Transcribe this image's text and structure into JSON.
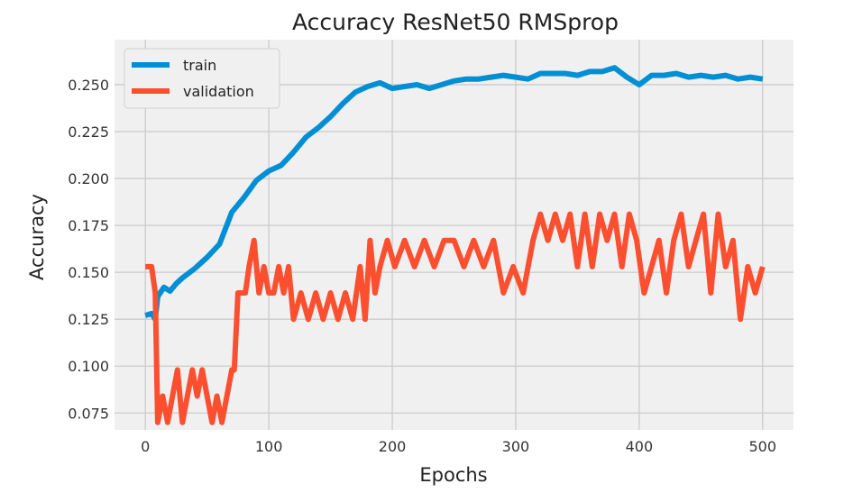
{
  "chart_data": {
    "type": "line",
    "title": "Accuracy ResNet50 RMSprop",
    "xlabel": "Epochs",
    "ylabel": "Accuracy",
    "xlim": [
      -25,
      525
    ],
    "ylim": [
      0.066,
      0.274
    ],
    "xticks": [
      0,
      100,
      200,
      300,
      400,
      500
    ],
    "yticks": [
      0.075,
      0.1,
      0.125,
      0.15,
      0.175,
      0.2,
      0.225,
      0.25
    ],
    "grid": true,
    "legend_position": "top-left",
    "colors": {
      "plot_bg": "#f0f0f0",
      "grid": "#cbcbcb",
      "train": "#008fd5",
      "validation": "#fc4f30"
    },
    "series": [
      {
        "name": "train",
        "color": "#008fd5",
        "x": [
          0,
          5,
          8,
          10,
          15,
          20,
          25,
          30,
          40,
          50,
          60,
          70,
          80,
          90,
          100,
          110,
          120,
          130,
          140,
          150,
          160,
          170,
          180,
          190,
          200,
          210,
          220,
          230,
          240,
          250,
          260,
          270,
          280,
          290,
          300,
          310,
          320,
          330,
          340,
          350,
          360,
          370,
          380,
          390,
          400,
          410,
          420,
          430,
          440,
          450,
          460,
          470,
          480,
          490,
          500
        ],
        "y": [
          0.127,
          0.128,
          0.125,
          0.137,
          0.142,
          0.14,
          0.144,
          0.147,
          0.152,
          0.158,
          0.165,
          0.182,
          0.19,
          0.199,
          0.204,
          0.207,
          0.214,
          0.222,
          0.227,
          0.233,
          0.24,
          0.246,
          0.249,
          0.251,
          0.248,
          0.249,
          0.25,
          0.248,
          0.25,
          0.252,
          0.253,
          0.253,
          0.254,
          0.255,
          0.254,
          0.253,
          0.256,
          0.256,
          0.256,
          0.255,
          0.257,
          0.257,
          0.259,
          0.254,
          0.25,
          0.255,
          0.255,
          0.256,
          0.254,
          0.255,
          0.254,
          0.255,
          0.253,
          0.254,
          0.253
        ]
      },
      {
        "name": "validation",
        "color": "#fc4f30",
        "x": [
          0,
          5,
          8,
          10,
          14,
          18,
          22,
          26,
          30,
          34,
          38,
          42,
          46,
          50,
          54,
          58,
          62,
          66,
          70,
          72,
          75,
          78,
          81,
          84,
          88,
          92,
          96,
          100,
          104,
          108,
          112,
          116,
          120,
          126,
          132,
          138,
          144,
          150,
          156,
          162,
          168,
          174,
          178,
          182,
          186,
          190,
          196,
          202,
          210,
          218,
          226,
          234,
          242,
          250,
          258,
          266,
          274,
          282,
          290,
          298,
          306,
          314,
          320,
          326,
          332,
          338,
          344,
          350,
          356,
          362,
          368,
          374,
          380,
          386,
          392,
          398,
          404,
          410,
          416,
          422,
          428,
          434,
          440,
          446,
          452,
          458,
          464,
          470,
          476,
          482,
          488,
          494,
          500
        ],
        "y": [
          0.153,
          0.153,
          0.139,
          0.07,
          0.084,
          0.07,
          0.084,
          0.098,
          0.07,
          0.084,
          0.098,
          0.084,
          0.098,
          0.084,
          0.07,
          0.084,
          0.07,
          0.084,
          0.098,
          0.098,
          0.139,
          0.139,
          0.139,
          0.153,
          0.167,
          0.139,
          0.153,
          0.139,
          0.139,
          0.153,
          0.139,
          0.153,
          0.125,
          0.139,
          0.125,
          0.139,
          0.125,
          0.139,
          0.125,
          0.139,
          0.125,
          0.153,
          0.125,
          0.167,
          0.139,
          0.153,
          0.167,
          0.153,
          0.167,
          0.153,
          0.167,
          0.153,
          0.167,
          0.167,
          0.153,
          0.167,
          0.153,
          0.167,
          0.139,
          0.153,
          0.139,
          0.167,
          0.181,
          0.167,
          0.181,
          0.167,
          0.181,
          0.153,
          0.181,
          0.153,
          0.181,
          0.167,
          0.181,
          0.153,
          0.181,
          0.167,
          0.139,
          0.153,
          0.167,
          0.139,
          0.167,
          0.181,
          0.153,
          0.167,
          0.181,
          0.139,
          0.181,
          0.153,
          0.167,
          0.125,
          0.153,
          0.139,
          0.153
        ]
      }
    ]
  }
}
